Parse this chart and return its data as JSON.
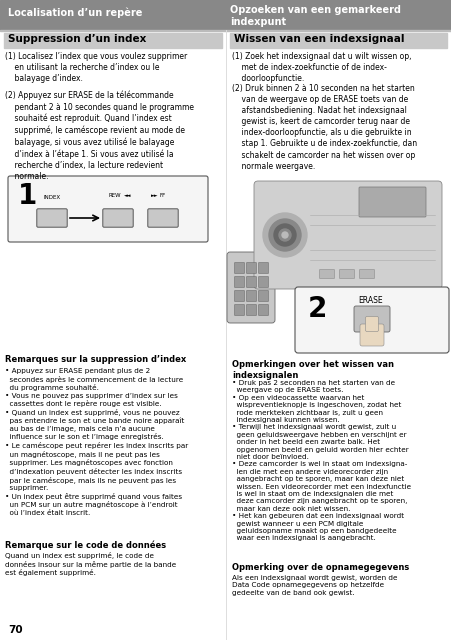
{
  "bg_color": "#ffffff",
  "header_bg": "#888888",
  "subheader_bg": "#c8c8c8",
  "header_text_color": "#ffffff",
  "body_text_color": "#000000",
  "page_number": "70",
  "left_header": "Localisation d’un repère",
  "right_header": "Opzoeken van een gemarkeerd\nindexpunt",
  "left_subheader": "Suppression d’un index",
  "right_subheader": "Wissen van een indexsignaal",
  "left_notes_header": "Remarques sur la suppression d’index",
  "left_note2_header": "Remarque sur le code de données",
  "right_notes_header": "Opmerkingen over het wissen van\nindexsignalen",
  "right_note2_header": "Opmerking over de opnamegegevens"
}
